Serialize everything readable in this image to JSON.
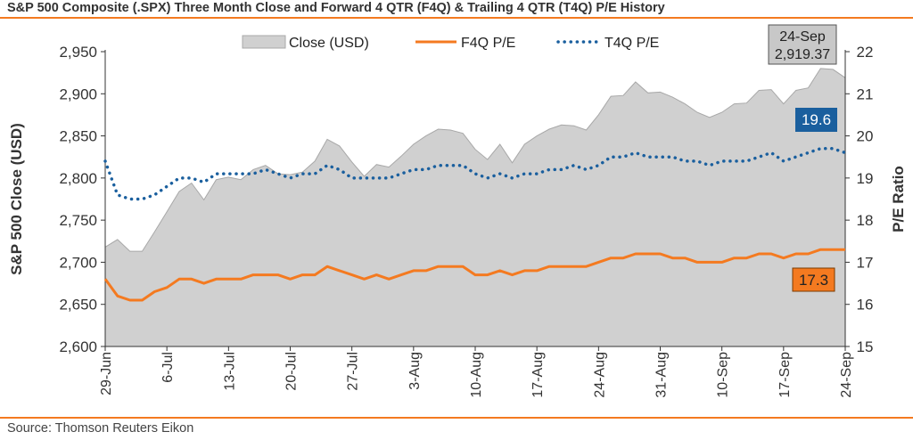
{
  "title": "S&P 500 Composite (.SPX) Three Month Close and Forward 4 QTR (F4Q) & Trailing 4 QTR (T4Q) P/E History",
  "source": "Source: Thomson Reuters Eikon",
  "colors": {
    "accent_rule": "#f47a20",
    "area_fill": "#d0d0d0",
    "area_stroke": "#a8a8a8",
    "f4q_line": "#f47a20",
    "t4q_line": "#1a5f9e",
    "t4q_badge": "#1a5f9e",
    "f4q_badge": "#f47a20",
    "close_badge": "#c8c8c8"
  },
  "chart_data": {
    "type": "area",
    "title": "S&P 500 Composite (.SPX) Three Month Close and Forward 4 QTR (F4Q) & Trailing 4 QTR (T4Q) P/E History",
    "ylabel_left": "S&P 500 Close (USD)",
    "ylabel_right": "P/E Ratio",
    "ylim_left": [
      2600,
      2950
    ],
    "ylim_right": [
      15,
      22
    ],
    "yticks_left": [
      "2,600",
      "2,650",
      "2,700",
      "2,750",
      "2,800",
      "2,850",
      "2,900",
      "2,950"
    ],
    "yticks_right": [
      "15",
      "16",
      "17",
      "18",
      "19",
      "20",
      "21",
      "22"
    ],
    "xticks": [
      "29-Jun",
      "6-Jul",
      "13-Jul",
      "20-Jul",
      "27-Jul",
      "3-Aug",
      "10-Aug",
      "17-Aug",
      "24-Aug",
      "31-Aug",
      "10-Sep",
      "17-Sep",
      "24-Sep"
    ],
    "grid": false,
    "legend_position": "top",
    "series": [
      {
        "name": "Close (USD)",
        "style": "area",
        "axis": "left",
        "values": [
          2718,
          2727,
          2713,
          2713,
          2736,
          2760,
          2784,
          2794,
          2774,
          2798,
          2801,
          2798,
          2810,
          2815,
          2805,
          2804,
          2807,
          2820,
          2846,
          2838,
          2819,
          2802,
          2816,
          2813,
          2826,
          2840,
          2850,
          2858,
          2857,
          2853,
          2834,
          2822,
          2840,
          2818,
          2840,
          2850,
          2858,
          2863,
          2862,
          2857,
          2875,
          2897,
          2898,
          2914,
          2901,
          2902,
          2896,
          2888,
          2878,
          2872,
          2878,
          2888,
          2889,
          2904,
          2905,
          2888,
          2904,
          2907,
          2930,
          2929,
          2919
        ]
      },
      {
        "name": "F4Q P/E",
        "style": "line",
        "axis": "right",
        "values": [
          16.6,
          16.2,
          16.1,
          16.1,
          16.3,
          16.4,
          16.6,
          16.6,
          16.5,
          16.6,
          16.6,
          16.6,
          16.7,
          16.7,
          16.7,
          16.6,
          16.7,
          16.7,
          16.9,
          16.8,
          16.7,
          16.6,
          16.7,
          16.6,
          16.7,
          16.8,
          16.8,
          16.9,
          16.9,
          16.9,
          16.7,
          16.7,
          16.8,
          16.7,
          16.8,
          16.8,
          16.9,
          16.9,
          16.9,
          16.9,
          17.0,
          17.1,
          17.1,
          17.2,
          17.2,
          17.2,
          17.1,
          17.1,
          17.0,
          17.0,
          17.0,
          17.1,
          17.1,
          17.2,
          17.2,
          17.1,
          17.2,
          17.2,
          17.3,
          17.3,
          17.3
        ]
      },
      {
        "name": "T4Q P/E",
        "style": "dotted",
        "axis": "right",
        "values": [
          19.4,
          18.6,
          18.5,
          18.5,
          18.6,
          18.8,
          19.0,
          19.0,
          18.9,
          19.1,
          19.1,
          19.1,
          19.1,
          19.2,
          19.1,
          19.0,
          19.1,
          19.1,
          19.3,
          19.2,
          19.0,
          19.0,
          19.0,
          19.0,
          19.1,
          19.2,
          19.2,
          19.3,
          19.3,
          19.3,
          19.1,
          19.0,
          19.1,
          19.0,
          19.1,
          19.1,
          19.2,
          19.2,
          19.3,
          19.2,
          19.3,
          19.5,
          19.5,
          19.6,
          19.5,
          19.5,
          19.5,
          19.4,
          19.4,
          19.3,
          19.4,
          19.4,
          19.4,
          19.5,
          19.6,
          19.4,
          19.5,
          19.6,
          19.7,
          19.7,
          19.6
        ]
      }
    ],
    "annotations": [
      {
        "kind": "close",
        "line1": "24-Sep",
        "line2": "2,919.37"
      },
      {
        "kind": "t4q",
        "text": "19.6"
      },
      {
        "kind": "f4q",
        "text": "17.3"
      }
    ]
  }
}
